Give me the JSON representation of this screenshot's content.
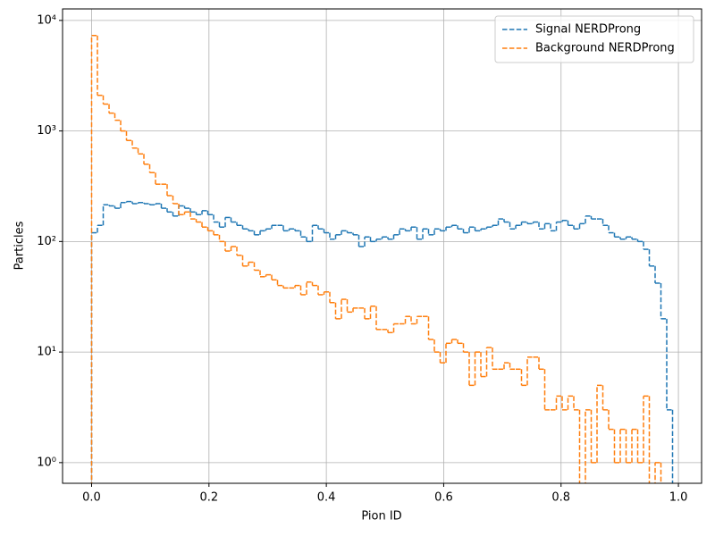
{
  "chart_data": {
    "type": "histogram",
    "xlabel": "Pion ID",
    "ylabel": "Particles",
    "log_y": true,
    "grid": true,
    "legend_position": "upper right",
    "histtype": "step",
    "linestyle": "dashed",
    "bins": [
      0,
      0.0099,
      0.0198,
      0.0297,
      0.0396,
      0.0495,
      0.0594,
      0.0693,
      0.0792,
      0.0891,
      0.099,
      0.1089,
      0.1188,
      0.1287,
      0.1386,
      0.1485,
      0.1584,
      0.1683,
      0.1782,
      0.1881,
      0.198,
      0.2079,
      0.2178,
      0.2277,
      0.2376,
      0.2475,
      0.2574,
      0.2673,
      0.2772,
      0.2871,
      0.297,
      0.3069,
      0.3168,
      0.3267,
      0.3366,
      0.3465,
      0.3564,
      0.3663,
      0.3762,
      0.3861,
      0.396,
      0.4059,
      0.4158,
      0.4257,
      0.4356,
      0.4455,
      0.4554,
      0.4653,
      0.4752,
      0.4851,
      0.495,
      0.5049,
      0.5148,
      0.5247,
      0.5346,
      0.5445,
      0.5544,
      0.5643,
      0.5742,
      0.5841,
      0.594,
      0.6039,
      0.6138,
      0.6237,
      0.6336,
      0.6435,
      0.6534,
      0.6633,
      0.6732,
      0.6831,
      0.693,
      0.7029,
      0.7128,
      0.7227,
      0.7326,
      0.7425,
      0.7524,
      0.7623,
      0.7722,
      0.7821,
      0.792,
      0.8019,
      0.8118,
      0.8217,
      0.8316,
      0.8415,
      0.8514,
      0.8613,
      0.8712,
      0.8811,
      0.891,
      0.9009,
      0.9108,
      0.9207,
      0.9306,
      0.9405,
      0.9504,
      0.9603,
      0.9702,
      0.9801,
      0.99
    ],
    "series": [
      {
        "name": "Signal NERDProng",
        "color": "#1f77b4",
        "values": [
          120,
          140,
          215,
          210,
          200,
          225,
          230,
          220,
          225,
          220,
          215,
          220,
          200,
          185,
          170,
          210,
          200,
          185,
          175,
          190,
          175,
          150,
          135,
          165,
          150,
          140,
          130,
          125,
          115,
          125,
          130,
          140,
          140,
          125,
          130,
          125,
          110,
          100,
          140,
          130,
          120,
          105,
          115,
          125,
          120,
          115,
          90,
          110,
          100,
          105,
          110,
          105,
          115,
          130,
          125,
          135,
          105,
          130,
          115,
          130,
          125,
          135,
          140,
          130,
          120,
          135,
          125,
          130,
          135,
          140,
          160,
          150,
          130,
          140,
          150,
          145,
          150,
          130,
          145,
          125,
          150,
          155,
          140,
          130,
          145,
          170,
          160,
          160,
          140,
          120,
          110,
          105,
          110,
          105,
          100,
          85,
          60,
          42,
          20,
          3
        ]
      },
      {
        "name": "Background NERDProng",
        "color": "#ff7f0e",
        "values": [
          7300,
          2100,
          1750,
          1450,
          1250,
          1000,
          820,
          700,
          620,
          500,
          420,
          330,
          330,
          260,
          220,
          175,
          185,
          160,
          150,
          135,
          125,
          115,
          100,
          82,
          90,
          75,
          60,
          65,
          55,
          48,
          50,
          45,
          40,
          38,
          38,
          40,
          33,
          43,
          40,
          33,
          35,
          28,
          20,
          30,
          23,
          25,
          25,
          20,
          26,
          16,
          16,
          15,
          18,
          18,
          21,
          18,
          21,
          21,
          13,
          10,
          8,
          12,
          13,
          12,
          10,
          5,
          10,
          6,
          11,
          7,
          7,
          8,
          7,
          7,
          5,
          9,
          9,
          7,
          3,
          3,
          4,
          3,
          4,
          3,
          0,
          3,
          1,
          5,
          3,
          2,
          1,
          2,
          1,
          2,
          1,
          4,
          0,
          1,
          0,
          0
        ]
      }
    ],
    "xlim": [
      -0.0495,
      1.0395
    ],
    "xticks": [
      {
        "value": 0,
        "label": "0.0"
      },
      0.2,
      0.4,
      0.6,
      0.8,
      {
        "value": 1,
        "label": "1.0"
      }
    ],
    "ylim": [
      0.65,
      12700
    ],
    "yticks": [
      {
        "value": 1,
        "label": "10⁰"
      },
      {
        "value": 10,
        "label": "10¹"
      },
      {
        "value": 100,
        "label": "10²"
      },
      {
        "value": 1000,
        "label": "10³"
      },
      {
        "value": 10000,
        "label": "10⁴"
      }
    ]
  }
}
